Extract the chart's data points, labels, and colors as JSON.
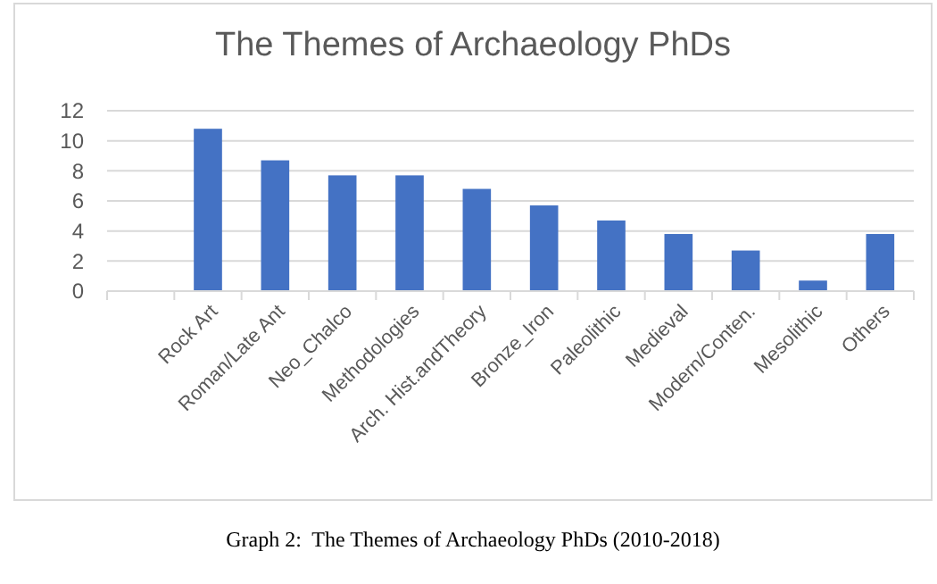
{
  "chart_data": {
    "type": "bar",
    "title": "The Themes of Archaeology PhDs",
    "categories": [
      null,
      "Rock Art",
      "Roman/Late Ant",
      "Neo_Chalco",
      "Methodologies",
      "Arch. Hist.andTheory",
      "Bronze_Iron",
      "Paleolithic",
      "Medieval",
      "Modern/Conten.",
      "Mesolithic",
      "Others"
    ],
    "values": [
      null,
      10.8,
      8.7,
      7.7,
      7.7,
      6.8,
      5.7,
      4.7,
      3.8,
      2.7,
      0.7,
      3.8
    ],
    "color": "#4472c4",
    "ylim": [
      0,
      12
    ],
    "yticks": [
      0,
      2,
      4,
      6,
      8,
      10,
      12
    ],
    "grid": "y",
    "annotations": [
      "Graph 2:  The Themes of Archaeology PhDs (2010-2018)"
    ]
  }
}
